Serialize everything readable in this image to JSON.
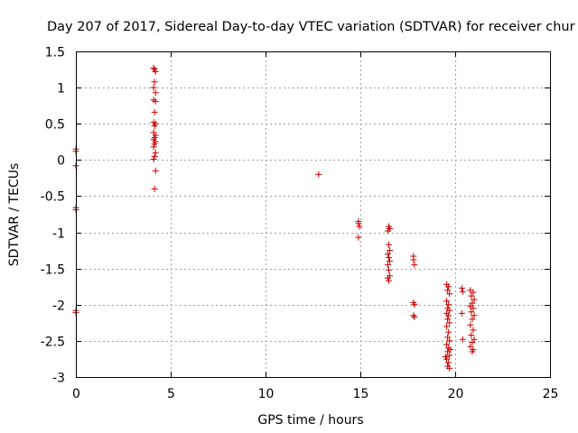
{
  "chart_data": {
    "type": "scatter",
    "title": "Day 207 of 2017, Sidereal Day-to-day VTEC variation (SDTVAR) for receiver chur",
    "xlabel": "GPS time / hours",
    "ylabel": "SDTVAR / TECUs",
    "xlim": [
      0,
      25
    ],
    "ylim": [
      -3,
      1.5
    ],
    "xticks": [
      0,
      5,
      10,
      15,
      20,
      25
    ],
    "xtick_labels": [
      "0",
      "5",
      "10",
      "15",
      "20",
      "25"
    ],
    "yticks": [
      -3,
      -2.5,
      -2,
      -1.5,
      -1,
      -0.5,
      0,
      0.5,
      1,
      1.5
    ],
    "ytick_labels": [
      "-3",
      "-2.5",
      "-2",
      "-1.5",
      "-1",
      "-0.5",
      "0",
      "0.5",
      "1",
      "1.5"
    ],
    "grid": true,
    "marker": "+",
    "color": "#cc0000",
    "series": [
      {
        "name": "SDTVAR",
        "points": [
          [
            0.0,
            0.15
          ],
          [
            0.0,
            0.12
          ],
          [
            0.0,
            -0.08
          ],
          [
            0.0,
            -0.66
          ],
          [
            0.0,
            -0.69
          ],
          [
            0.0,
            -2.08
          ],
          [
            0.0,
            -2.11
          ],
          [
            4.1,
            1.27
          ],
          [
            4.15,
            1.25
          ],
          [
            4.2,
            1.22
          ],
          [
            4.15,
            1.08
          ],
          [
            4.1,
            1.0
          ],
          [
            4.2,
            0.93
          ],
          [
            4.1,
            0.83
          ],
          [
            4.2,
            0.81
          ],
          [
            4.15,
            0.66
          ],
          [
            4.1,
            0.52
          ],
          [
            4.2,
            0.5
          ],
          [
            4.15,
            0.47
          ],
          [
            4.1,
            0.38
          ],
          [
            4.2,
            0.34
          ],
          [
            4.15,
            0.31
          ],
          [
            4.1,
            0.28
          ],
          [
            4.2,
            0.25
          ],
          [
            4.15,
            0.22
          ],
          [
            4.1,
            0.18
          ],
          [
            4.2,
            0.1
          ],
          [
            4.15,
            0.05
          ],
          [
            4.1,
            0.01
          ],
          [
            4.2,
            -0.15
          ],
          [
            4.15,
            -0.4
          ],
          [
            12.8,
            -0.2
          ],
          [
            14.9,
            -0.85
          ],
          [
            14.9,
            -0.88
          ],
          [
            14.95,
            -0.92
          ],
          [
            14.9,
            -1.07
          ],
          [
            16.5,
            -0.92
          ],
          [
            16.55,
            -0.95
          ],
          [
            16.45,
            -0.98
          ],
          [
            16.5,
            -1.17
          ],
          [
            16.55,
            -1.25
          ],
          [
            16.45,
            -1.3
          ],
          [
            16.5,
            -1.35
          ],
          [
            16.55,
            -1.4
          ],
          [
            16.45,
            -1.45
          ],
          [
            16.5,
            -1.52
          ],
          [
            16.55,
            -1.6
          ],
          [
            16.45,
            -1.63
          ],
          [
            16.5,
            -1.67
          ],
          [
            17.8,
            -1.33
          ],
          [
            17.8,
            -1.38
          ],
          [
            17.85,
            -1.45
          ],
          [
            17.8,
            -1.97
          ],
          [
            17.85,
            -2.0
          ],
          [
            17.8,
            -2.15
          ],
          [
            17.85,
            -2.17
          ],
          [
            19.55,
            -1.72
          ],
          [
            19.65,
            -1.75
          ],
          [
            19.6,
            -1.8
          ],
          [
            19.7,
            -1.85
          ],
          [
            19.55,
            -1.95
          ],
          [
            19.65,
            -2.0
          ],
          [
            19.6,
            -2.05
          ],
          [
            19.7,
            -2.08
          ],
          [
            19.55,
            -2.12
          ],
          [
            19.65,
            -2.15
          ],
          [
            19.6,
            -2.2
          ],
          [
            19.7,
            -2.25
          ],
          [
            19.55,
            -2.3
          ],
          [
            19.65,
            -2.38
          ],
          [
            19.6,
            -2.45
          ],
          [
            19.7,
            -2.5
          ],
          [
            19.55,
            -2.55
          ],
          [
            19.65,
            -2.6
          ],
          [
            19.6,
            -2.65
          ],
          [
            19.7,
            -2.7
          ],
          [
            19.55,
            -2.75
          ],
          [
            19.65,
            -2.8
          ],
          [
            19.6,
            -2.85
          ],
          [
            19.7,
            -2.88
          ],
          [
            19.5,
            -2.72
          ],
          [
            19.75,
            -2.62
          ],
          [
            20.35,
            -1.77
          ],
          [
            20.4,
            -1.82
          ],
          [
            20.35,
            -2.12
          ],
          [
            20.4,
            -2.48
          ],
          [
            20.8,
            -1.8
          ],
          [
            20.95,
            -1.83
          ],
          [
            20.85,
            -1.88
          ],
          [
            21.0,
            -1.93
          ],
          [
            20.9,
            -1.98
          ],
          [
            20.8,
            -2.02
          ],
          [
            20.95,
            -2.05
          ],
          [
            20.85,
            -2.1
          ],
          [
            21.0,
            -2.15
          ],
          [
            20.9,
            -2.2
          ],
          [
            20.8,
            -2.28
          ],
          [
            20.95,
            -2.35
          ],
          [
            20.85,
            -2.42
          ],
          [
            21.0,
            -2.48
          ],
          [
            20.9,
            -2.52
          ],
          [
            20.8,
            -2.58
          ],
          [
            20.95,
            -2.62
          ],
          [
            20.9,
            -2.65
          ]
        ]
      }
    ]
  }
}
